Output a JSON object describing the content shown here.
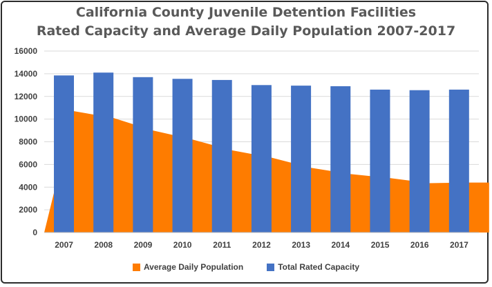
{
  "chart_data": {
    "type": "bar",
    "title_line1": "California County Juvenile Detention Facilities",
    "title_line2": "Rated Capacity and Average Daily Population 2007-2017",
    "categories": [
      "2007",
      "2008",
      "2009",
      "2010",
      "2011",
      "2012",
      "2013",
      "2014",
      "2015",
      "2016",
      "2017"
    ],
    "ylim": [
      0,
      16000
    ],
    "yticks": [
      0,
      2000,
      4000,
      6000,
      8000,
      10000,
      12000,
      14000,
      16000
    ],
    "grid": true,
    "legend_position": "bottom",
    "series": [
      {
        "name": "Average Daily Population",
        "type": "area",
        "color": "#fe7c00",
        "values": [
          10700,
          10100,
          9000,
          8200,
          7250,
          6600,
          5700,
          5150,
          4800,
          4350,
          4400
        ]
      },
      {
        "name": "Total Rated Capacity",
        "type": "bar",
        "color": "#4472c4",
        "values": [
          13850,
          14100,
          13700,
          13550,
          13450,
          13000,
          12950,
          12900,
          12600,
          12550,
          12600
        ]
      }
    ]
  }
}
